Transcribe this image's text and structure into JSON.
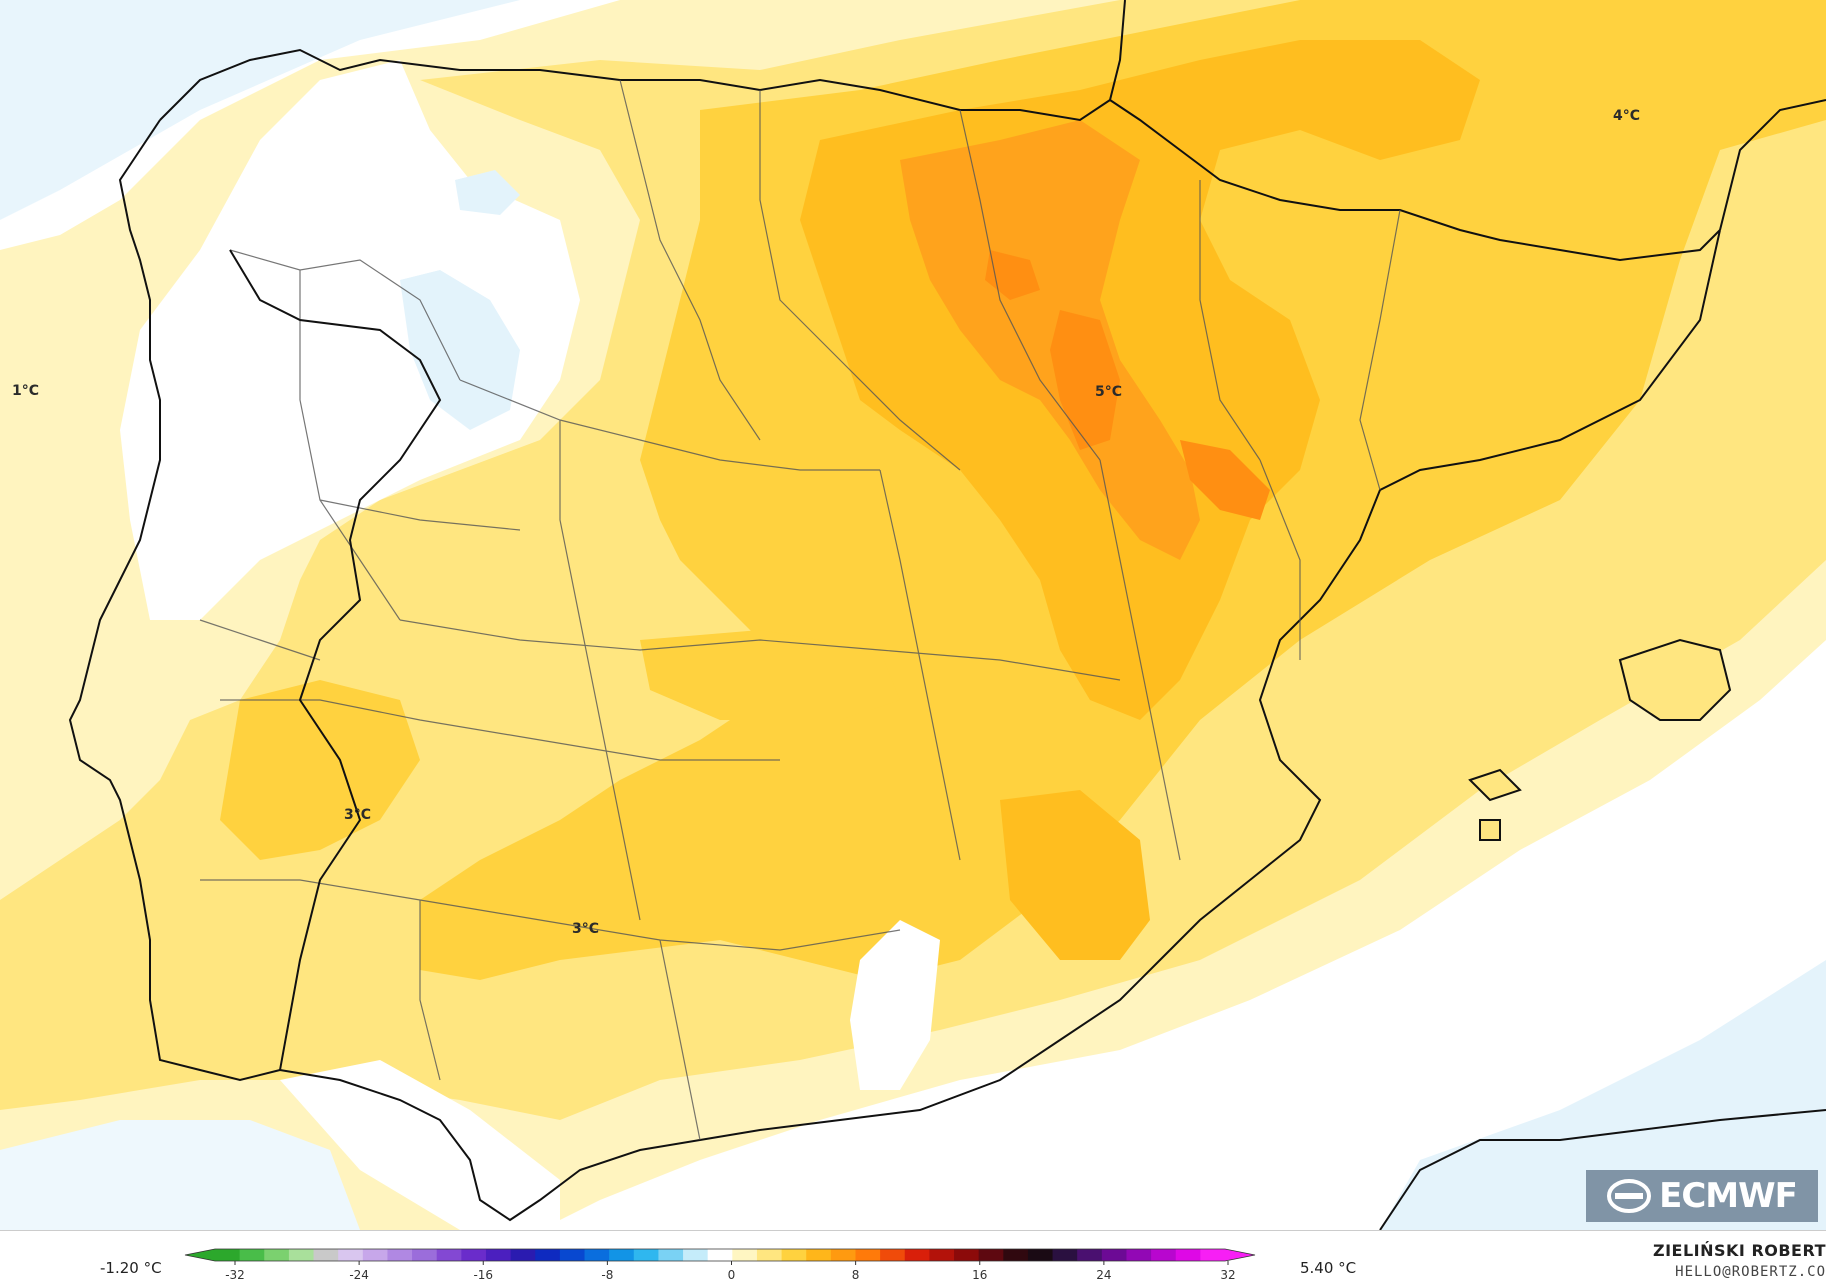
{
  "map": {
    "labels": [
      {
        "text": "1°C"
      },
      {
        "text": "4°C"
      },
      {
        "text": "5°C"
      },
      {
        "text": "3°C"
      },
      {
        "text": "3°C"
      }
    ],
    "colors": {
      "sea_light": "#e6f4fb",
      "white_band": "#ffffff",
      "pale_yellow": "#fff3b8",
      "yellow_1": "#ffe680",
      "yellow_2": "#ffd23f",
      "orange_1": "#ffbf1f",
      "orange_2": "#ffa81a",
      "orange_3": "#ff9410",
      "border": "#111111"
    }
  },
  "logo": {
    "text": "ECMWF",
    "icon": "ecmwf-logo-icon"
  },
  "colorbar": {
    "min_label": "-1.20 °C",
    "max_label": "5.40 °C",
    "ticks": [
      "-32",
      "-24",
      "-16",
      "-8",
      "0",
      "8",
      "16",
      "24",
      "32"
    ],
    "colors": [
      "#2ca82c",
      "#49bd49",
      "#7bd16f",
      "#a9e09b",
      "#c9c9c9",
      "#d9c6ef",
      "#c7a7ea",
      "#b088e3",
      "#9b6ddb",
      "#8348d3",
      "#6a2ccb",
      "#4b1fbf",
      "#2a1bb0",
      "#0e2ac0",
      "#0848d0",
      "#0a6ede",
      "#1294e6",
      "#2fb7ef",
      "#7ad2f4",
      "#c5ecfa",
      "#ffffff",
      "#fff6c2",
      "#ffe680",
      "#ffd23f",
      "#ffb61a",
      "#ff9a10",
      "#ff7a0a",
      "#f04b0a",
      "#d91f0a",
      "#b3120a",
      "#8c0a0a",
      "#5e0810",
      "#30080f",
      "#1a0a14",
      "#2a1040",
      "#4a1070",
      "#6c0a95",
      "#9208b5",
      "#b806cf",
      "#de08e6",
      "#f71ff5"
    ]
  },
  "credit": {
    "name": "ZIELIŃSKI ROBERT",
    "email": "HELLO@ROBERTZ.CO"
  }
}
